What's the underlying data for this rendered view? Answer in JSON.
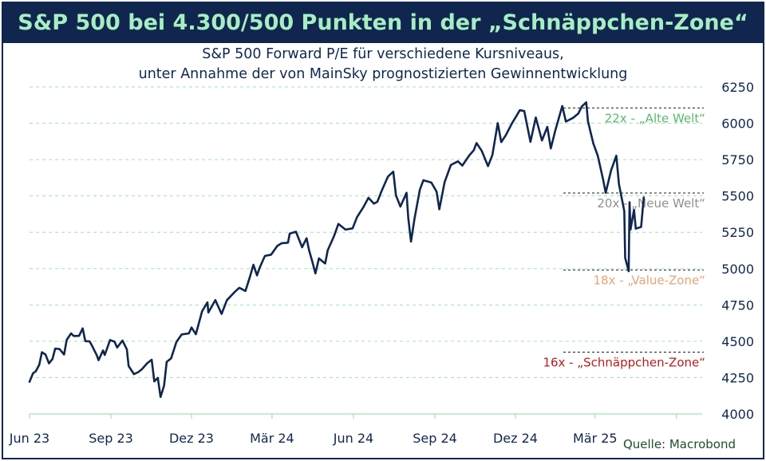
{
  "title": "S&P 500 bei 4.300/500 Punkten in der „Schnäppchen-Zone“",
  "subtitle_line1": "S&P 500 Forward P/E für verschiedene Kursniveaus,",
  "subtitle_line2": "unter Annahme der von MainSky prognostizierten Gewinnentwicklung",
  "source": "Quelle: Macrobond",
  "colors": {
    "banner": "#10264f",
    "title": "#a6eec2",
    "line": "#10264f",
    "grid": "#9fe3b3"
  },
  "chart_data": {
    "type": "line",
    "x_tick_labels": [
      "Jun 23",
      "Sep 23",
      "Dez 23",
      "Mär 24",
      "Jun 24",
      "Sep 24",
      "Dez 24",
      "Mär 25"
    ],
    "y_ticks": [
      4000,
      4250,
      4500,
      4750,
      5000,
      5250,
      5500,
      5750,
      6000,
      6250
    ],
    "ylim": [
      4000,
      6250
    ],
    "xlim": [
      "2023-06-01",
      "2025-06-30"
    ],
    "series": [
      {
        "values": [
          [
            "2023-06-01",
            4221
          ],
          [
            "2023-06-05",
            4280
          ],
          [
            "2023-06-08",
            4293
          ],
          [
            "2023-06-12",
            4338
          ],
          [
            "2023-06-15",
            4425
          ],
          [
            "2023-06-19",
            4409
          ],
          [
            "2023-06-23",
            4348
          ],
          [
            "2023-06-27",
            4378
          ],
          [
            "2023-06-30",
            4450
          ],
          [
            "2023-07-05",
            4446
          ],
          [
            "2023-07-10",
            4409
          ],
          [
            "2023-07-13",
            4510
          ],
          [
            "2023-07-18",
            4554
          ],
          [
            "2023-07-21",
            4536
          ],
          [
            "2023-07-27",
            4537
          ],
          [
            "2023-07-31",
            4589
          ],
          [
            "2023-08-03",
            4501
          ],
          [
            "2023-08-08",
            4499
          ],
          [
            "2023-08-11",
            4464
          ],
          [
            "2023-08-16",
            4404
          ],
          [
            "2023-08-18",
            4370
          ],
          [
            "2023-08-23",
            4437
          ],
          [
            "2023-08-25",
            4406
          ],
          [
            "2023-08-31",
            4508
          ],
          [
            "2023-09-05",
            4497
          ],
          [
            "2023-09-08",
            4457
          ],
          [
            "2023-09-14",
            4505
          ],
          [
            "2023-09-19",
            4444
          ],
          [
            "2023-09-21",
            4330
          ],
          [
            "2023-09-27",
            4274
          ],
          [
            "2023-10-02",
            4288
          ],
          [
            "2023-10-06",
            4308
          ],
          [
            "2023-10-12",
            4349
          ],
          [
            "2023-10-17",
            4373
          ],
          [
            "2023-10-20",
            4224
          ],
          [
            "2023-10-24",
            4248
          ],
          [
            "2023-10-27",
            4117
          ],
          [
            "2023-10-31",
            4194
          ],
          [
            "2023-11-03",
            4358
          ],
          [
            "2023-11-08",
            4383
          ],
          [
            "2023-11-14",
            4496
          ],
          [
            "2023-11-20",
            4547
          ],
          [
            "2023-11-28",
            4554
          ],
          [
            "2023-12-01",
            4595
          ],
          [
            "2023-12-06",
            4549
          ],
          [
            "2023-12-13",
            4707
          ],
          [
            "2023-12-19",
            4768
          ],
          [
            "2023-12-20",
            4698
          ],
          [
            "2023-12-28",
            4783
          ],
          [
            "2024-01-04",
            4688
          ],
          [
            "2024-01-10",
            4783
          ],
          [
            "2024-01-19",
            4840
          ],
          [
            "2024-01-24",
            4868
          ],
          [
            "2024-01-31",
            4846
          ],
          [
            "2024-02-05",
            4943
          ],
          [
            "2024-02-09",
            5027
          ],
          [
            "2024-02-13",
            4953
          ],
          [
            "2024-02-16",
            5006
          ],
          [
            "2024-02-22",
            5087
          ],
          [
            "2024-02-29",
            5096
          ],
          [
            "2024-03-07",
            5157
          ],
          [
            "2024-03-12",
            5175
          ],
          [
            "2024-03-19",
            5178
          ],
          [
            "2024-03-21",
            5241
          ],
          [
            "2024-03-28",
            5254
          ],
          [
            "2024-04-04",
            5147
          ],
          [
            "2024-04-09",
            5209
          ],
          [
            "2024-04-12",
            5123
          ],
          [
            "2024-04-15",
            5061
          ],
          [
            "2024-04-19",
            4967
          ],
          [
            "2024-04-23",
            5070
          ],
          [
            "2024-04-30",
            5035
          ],
          [
            "2024-05-03",
            5128
          ],
          [
            "2024-05-10",
            5223
          ],
          [
            "2024-05-15",
            5308
          ],
          [
            "2024-05-23",
            5268
          ],
          [
            "2024-05-31",
            5277
          ],
          [
            "2024-06-05",
            5354
          ],
          [
            "2024-06-12",
            5421
          ],
          [
            "2024-06-18",
            5487
          ],
          [
            "2024-06-24",
            5447
          ],
          [
            "2024-06-28",
            5460
          ],
          [
            "2024-07-03",
            5537
          ],
          [
            "2024-07-10",
            5633
          ],
          [
            "2024-07-16",
            5667
          ],
          [
            "2024-07-19",
            5505
          ],
          [
            "2024-07-24",
            5427
          ],
          [
            "2024-07-31",
            5522
          ],
          [
            "2024-08-02",
            5346
          ],
          [
            "2024-08-05",
            5186
          ],
          [
            "2024-08-09",
            5344
          ],
          [
            "2024-08-15",
            5543
          ],
          [
            "2024-08-19",
            5608
          ],
          [
            "2024-08-28",
            5592
          ],
          [
            "2024-09-03",
            5529
          ],
          [
            "2024-09-06",
            5408
          ],
          [
            "2024-09-12",
            5595
          ],
          [
            "2024-09-19",
            5713
          ],
          [
            "2024-09-27",
            5738
          ],
          [
            "2024-10-02",
            5709
          ],
          [
            "2024-10-10",
            5780
          ],
          [
            "2024-10-15",
            5815
          ],
          [
            "2024-10-18",
            5864
          ],
          [
            "2024-10-24",
            5810
          ],
          [
            "2024-10-31",
            5705
          ],
          [
            "2024-11-05",
            5782
          ],
          [
            "2024-11-11",
            6001
          ],
          [
            "2024-11-15",
            5870
          ],
          [
            "2024-11-20",
            5917
          ],
          [
            "2024-11-27",
            5998
          ],
          [
            "2024-12-06",
            6090
          ],
          [
            "2024-12-11",
            6084
          ],
          [
            "2024-12-18",
            5872
          ],
          [
            "2024-12-24",
            6040
          ],
          [
            "2024-12-31",
            5882
          ],
          [
            "2025-01-06",
            5975
          ],
          [
            "2025-01-10",
            5827
          ],
          [
            "2025-01-15",
            5950
          ],
          [
            "2025-01-23",
            6119
          ],
          [
            "2025-01-27",
            6012
          ],
          [
            "2025-02-04",
            6037
          ],
          [
            "2025-02-10",
            6066
          ],
          [
            "2025-02-14",
            6115
          ],
          [
            "2025-02-19",
            6144
          ],
          [
            "2025-02-21",
            6013
          ],
          [
            "2025-02-27",
            5861
          ],
          [
            "2025-03-04",
            5778
          ],
          [
            "2025-03-10",
            5614
          ],
          [
            "2025-03-13",
            5522
          ],
          [
            "2025-03-19",
            5675
          ],
          [
            "2025-03-25",
            5777
          ],
          [
            "2025-03-28",
            5581
          ],
          [
            "2025-04-03",
            5396
          ],
          [
            "2025-04-04",
            5074
          ],
          [
            "2025-04-08",
            4982
          ],
          [
            "2025-04-09",
            5457
          ],
          [
            "2025-04-10",
            5268
          ],
          [
            "2025-04-14",
            5405
          ],
          [
            "2025-04-16",
            5275
          ],
          [
            "2025-04-22",
            5287
          ],
          [
            "2025-04-25",
            5490
          ]
        ]
      }
    ],
    "valuation_lines": [
      {
        "value": 6105,
        "label": "22x - „Alte Welt“",
        "color": "#59b86b"
      },
      {
        "value": 5520,
        "label": "20x - „Neue Welt“",
        "color": "#8f8f8f"
      },
      {
        "value": 4990,
        "label": "18x - „Value-Zone“",
        "color": "#e6a379"
      },
      {
        "value": 4425,
        "label": "16x - „Schnäppchen-Zone“",
        "color": "#b71c1c"
      }
    ],
    "grid": true,
    "grid_style": "horizontal dashed"
  }
}
